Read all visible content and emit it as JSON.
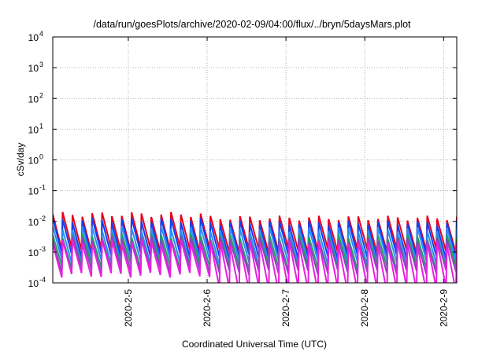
{
  "chart_data": {
    "type": "line",
    "title": "/data/run/goesPlots/archive/2020-02-09/04:00/flux/../bryn/5daysMars.plot",
    "xlabel": "Coordinated Universal Time (UTC)",
    "ylabel": "cSv/day",
    "y_scale": "log",
    "ylim": [
      0.0001,
      10000
    ],
    "xlim": [
      "2020-02-04 01:00",
      "2020-02-09 04:00"
    ],
    "grid": true,
    "y_ticks": [
      {
        "value": 0.0001,
        "base": "10",
        "exp": "-4"
      },
      {
        "value": 0.001,
        "base": "10",
        "exp": "-3"
      },
      {
        "value": 0.01,
        "base": "10",
        "exp": "-2"
      },
      {
        "value": 0.1,
        "base": "10",
        "exp": "-1"
      },
      {
        "value": 1,
        "base": "10",
        "exp": "0"
      },
      {
        "value": 10,
        "base": "10",
        "exp": "1"
      },
      {
        "value": 100,
        "base": "10",
        "exp": "2"
      },
      {
        "value": 1000,
        "base": "10",
        "exp": "3"
      },
      {
        "value": 10000,
        "base": "10",
        "exp": "4"
      }
    ],
    "x_ticks": [
      {
        "label": "2020-2-5",
        "value": "2020-02-05 00:00"
      },
      {
        "label": "2020-2-6",
        "value": "2020-02-06 00:00"
      },
      {
        "label": "2020-2-7",
        "value": "2020-02-07 00:00"
      },
      {
        "label": "2020-2-8",
        "value": "2020-02-08 00:00"
      },
      {
        "label": "2020-2-9",
        "value": "2020-02-09 00:00"
      }
    ],
    "series": [
      {
        "color": "#e8001c",
        "peak": 0.017,
        "trough": 0.0012,
        "peak2": 0.013,
        "trough2": 0.0011
      },
      {
        "color": "#1040f0",
        "peak": 0.011,
        "trough": 0.0008,
        "peak2": 0.009,
        "trough2": 0.0007
      },
      {
        "color": "#2a8cff",
        "peak": 0.006,
        "trough": 0.0005,
        "peak2": 0.0055,
        "trough2": 0.00045
      },
      {
        "color": "#20a060",
        "peak": 0.0035,
        "trough": 0.00035,
        "peak2": 0.0032,
        "trough2": 0.0003
      },
      {
        "color": "#9040c0",
        "peak": 0.0028,
        "trough": 0.00025,
        "peak2": 0.0025,
        "trough2": 0.00022
      },
      {
        "color": "#e820e0",
        "peak": 0.0022,
        "trough": 0.00018,
        "peak2": 0.002,
        "trough2": 6e-05
      }
    ],
    "cycle_hours": 3,
    "regime_change": "2020-02-06 00:00"
  }
}
